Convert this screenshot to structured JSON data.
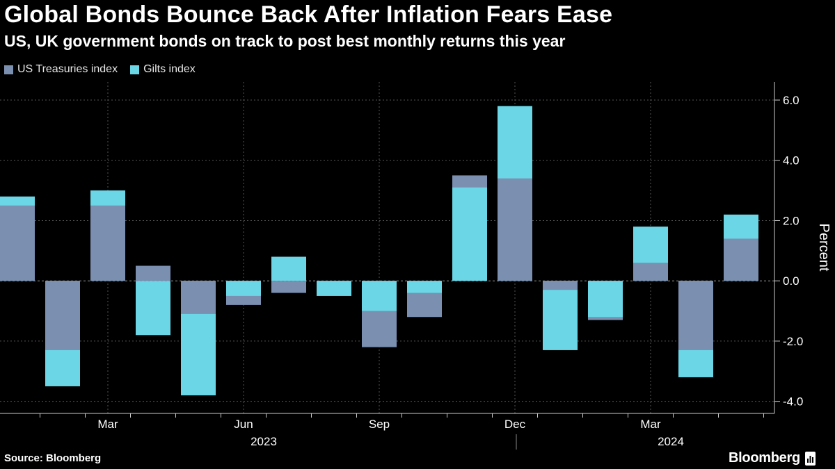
{
  "title": "Global Bonds Bounce Back After Inflation Fears Ease",
  "subtitle": "US, UK government bonds on track to post best monthly returns this year",
  "source": "Source: Bloomberg",
  "brand": "Bloomberg",
  "colors": {
    "background": "#000000",
    "us_treasuries": "#7b8fb0",
    "gilts": "#6ad6e6",
    "grid": "#555555",
    "axis": "#cccccc"
  },
  "chart_data": {
    "type": "bar",
    "bar_style": "overlapping",
    "categories": [
      "Jan 2023",
      "Feb 2023",
      "Mar 2023",
      "Apr 2023",
      "May 2023",
      "Jun 2023",
      "Jul 2023",
      "Aug 2023",
      "Sep 2023",
      "Oct 2023",
      "Nov 2023",
      "Dec 2023",
      "Jan 2024",
      "Feb 2024",
      "Mar 2024",
      "Apr 2024",
      "May 2024"
    ],
    "series": [
      {
        "name": "US Treasuries index",
        "color": "#7b8fb0",
        "values": [
          2.5,
          -2.3,
          2.5,
          0.5,
          -1.1,
          -0.8,
          -0.4,
          -0.5,
          -2.2,
          -1.2,
          3.5,
          3.4,
          -0.3,
          -1.3,
          0.6,
          -2.3,
          1.4
        ]
      },
      {
        "name": "Gilts index",
        "color": "#6ad6e6",
        "values": [
          2.8,
          -3.5,
          3.0,
          -1.8,
          -3.8,
          -0.5,
          0.8,
          -0.5,
          -1.0,
          -0.4,
          3.1,
          5.8,
          -2.3,
          -1.2,
          1.8,
          -3.2,
          2.2
        ]
      }
    ],
    "x_tick_labels": [
      {
        "label": "Mar",
        "category": "Mar 2023"
      },
      {
        "label": "Jun",
        "category": "Jun 2023"
      },
      {
        "label": "Sep",
        "category": "Sep 2023"
      },
      {
        "label": "Dec",
        "category": "Dec 2023"
      },
      {
        "label": "Mar",
        "category": "Mar 2024"
      }
    ],
    "year_labels": [
      {
        "label": "2023",
        "category": "Jun 2023"
      },
      {
        "label": "2024",
        "category": "Mar 2024"
      }
    ],
    "y_ticks": [
      -4,
      -2,
      0,
      2,
      4,
      6
    ],
    "y_tick_labels": [
      "-4.0",
      "-2.0",
      "0.0",
      "2.0",
      "4.0",
      "6.0"
    ],
    "ylim": [
      -4.4,
      6.6
    ],
    "ylabel": "Percent",
    "xlabel": "",
    "grid": true,
    "legend_position": "top-left",
    "y_axis_position": "right"
  }
}
